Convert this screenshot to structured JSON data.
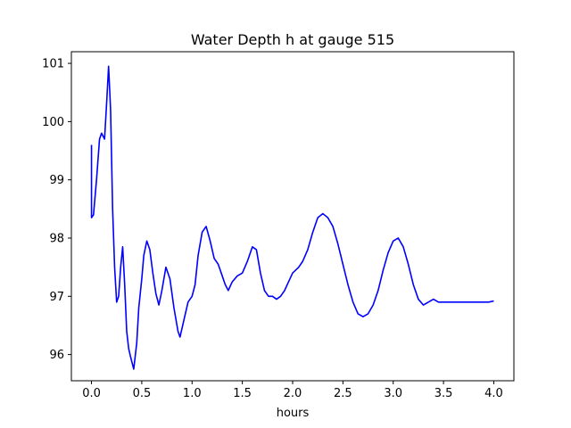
{
  "chart_data": {
    "type": "line",
    "title": "Water Depth h at gauge 515",
    "xlabel": "hours",
    "ylabel": "",
    "xlim": [
      -0.2,
      4.2
    ],
    "ylim": [
      95.55,
      101.2
    ],
    "grid": false,
    "xticks": [
      0.0,
      0.5,
      1.0,
      1.5,
      2.0,
      2.5,
      3.0,
      3.5,
      4.0
    ],
    "xtick_labels": [
      "0.0",
      "0.5",
      "1.0",
      "1.5",
      "2.0",
      "2.5",
      "3.0",
      "3.5",
      "4.0"
    ],
    "yticks": [
      96,
      97,
      98,
      99,
      100,
      101
    ],
    "ytick_labels": [
      "96",
      "97",
      "98",
      "99",
      "100",
      "101"
    ],
    "series": [
      {
        "name": "",
        "color": "#0000ff",
        "x": [
          0.0,
          0.0,
          0.02,
          0.05,
          0.08,
          0.1,
          0.13,
          0.15,
          0.17,
          0.19,
          0.21,
          0.23,
          0.25,
          0.27,
          0.29,
          0.31,
          0.33,
          0.35,
          0.37,
          0.39,
          0.42,
          0.45,
          0.47,
          0.5,
          0.52,
          0.55,
          0.58,
          0.61,
          0.64,
          0.67,
          0.7,
          0.74,
          0.78,
          0.82,
          0.86,
          0.88,
          0.92,
          0.96,
          1.0,
          1.03,
          1.06,
          1.1,
          1.14,
          1.18,
          1.22,
          1.26,
          1.3,
          1.33,
          1.36,
          1.4,
          1.45,
          1.5,
          1.55,
          1.6,
          1.64,
          1.68,
          1.72,
          1.76,
          1.8,
          1.84,
          1.88,
          1.92,
          1.96,
          2.0,
          2.03,
          2.06,
          2.1,
          2.15,
          2.2,
          2.25,
          2.3,
          2.35,
          2.4,
          2.45,
          2.5,
          2.55,
          2.6,
          2.65,
          2.7,
          2.75,
          2.8,
          2.85,
          2.9,
          2.95,
          3.0,
          3.05,
          3.1,
          3.15,
          3.2,
          3.25,
          3.3,
          3.35,
          3.4,
          3.45,
          3.5,
          3.55,
          3.6,
          3.65,
          3.7,
          3.75,
          3.8,
          3.85,
          3.9,
          3.95,
          4.0
        ],
        "y": [
          99.6,
          98.35,
          98.4,
          99.0,
          99.7,
          99.8,
          99.7,
          100.3,
          100.95,
          100.2,
          98.5,
          97.5,
          96.9,
          97.0,
          97.5,
          97.85,
          97.2,
          96.4,
          96.1,
          95.95,
          95.75,
          96.2,
          96.8,
          97.3,
          97.7,
          97.95,
          97.8,
          97.4,
          97.05,
          96.85,
          97.1,
          97.5,
          97.3,
          96.8,
          96.4,
          96.3,
          96.6,
          96.9,
          97.0,
          97.2,
          97.7,
          98.1,
          98.2,
          97.95,
          97.65,
          97.55,
          97.35,
          97.2,
          97.1,
          97.25,
          97.35,
          97.4,
          97.6,
          97.85,
          97.8,
          97.4,
          97.1,
          97.0,
          97.0,
          96.95,
          97.0,
          97.1,
          97.25,
          97.4,
          97.45,
          97.5,
          97.6,
          97.8,
          98.1,
          98.35,
          98.42,
          98.35,
          98.2,
          97.9,
          97.55,
          97.2,
          96.9,
          96.7,
          96.65,
          96.7,
          96.85,
          97.1,
          97.45,
          97.75,
          97.95,
          98.0,
          97.85,
          97.55,
          97.2,
          96.95,
          96.85,
          96.9,
          96.95,
          96.9,
          96.9,
          96.9,
          96.9,
          96.9,
          96.9,
          96.9,
          96.9,
          96.9,
          96.9,
          96.9,
          96.92
        ]
      }
    ]
  }
}
